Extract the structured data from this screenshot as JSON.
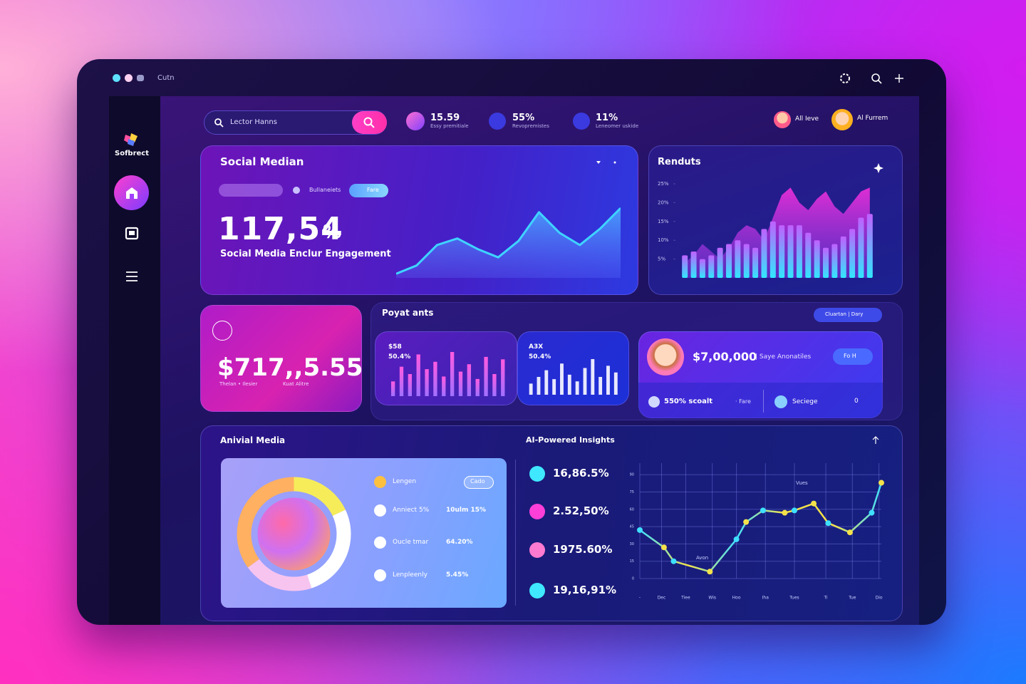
{
  "window": {
    "title": "Cutn"
  },
  "sidebar": {
    "brand": "Sofbrect"
  },
  "search": {
    "placeholder": "Lector Hanns"
  },
  "stats": [
    {
      "value": "15.59",
      "label": "Essy premitiale"
    },
    {
      "value": "55%",
      "label": "Revopremistes"
    },
    {
      "value": "11%",
      "label": "Leneomer uskide"
    }
  ],
  "users": [
    "All Ieve",
    "Al Furrem"
  ],
  "social": {
    "title": "Social Median",
    "chips": [
      "Bullaneiets",
      "Fare"
    ],
    "value": "117,54",
    "unit": "%",
    "caption": "Social Media Enclur Engagement",
    "chart_data": {
      "type": "area",
      "values": [
        5,
        15,
        40,
        48,
        35,
        25,
        45,
        80,
        55,
        40,
        60,
        85
      ],
      "color": "#3fd4ff"
    }
  },
  "results": {
    "title": "Renduts",
    "chart_data": {
      "type": "bar",
      "values": [
        6,
        7,
        5,
        6,
        8,
        9,
        10,
        9,
        8,
        13,
        15,
        14,
        14,
        14,
        12,
        10,
        8,
        9,
        11,
        13,
        16,
        17
      ],
      "wave": [
        4,
        6,
        9,
        7,
        5,
        8,
        12,
        14,
        13,
        10,
        16,
        22,
        24,
        20,
        18,
        21,
        23,
        19,
        17,
        20,
        23,
        24
      ],
      "ylim": [
        0,
        25
      ],
      "yticks": [
        {
          "value": 5,
          "label": "5%"
        },
        {
          "value": 10,
          "label": "10%"
        },
        {
          "value": 15,
          "label": "15%"
        },
        {
          "value": 20,
          "label": "20%"
        },
        {
          "value": 25,
          "label": "25%"
        }
      ]
    }
  },
  "balance": {
    "value": "$717,,5.55",
    "labels": [
      "Thelan • Ilesier",
      "Kuat Alitre"
    ]
  },
  "payments": {
    "title": "Poyat ants",
    "chip": "Cluartan | Dary",
    "panels": [
      {
        "label": "$58",
        "sub": "50.4%",
        "chart_data": {
          "type": "bar",
          "values": [
            30,
            60,
            45,
            85,
            55,
            70,
            40,
            90,
            50,
            65,
            35,
            80,
            45,
            75
          ]
        }
      },
      {
        "label": "A3X",
        "sub": "50.4%",
        "chart_data": {
          "type": "bar",
          "values": [
            25,
            40,
            55,
            35,
            70,
            45,
            30,
            60,
            80,
            40,
            65,
            50
          ]
        }
      }
    ]
  },
  "profile": {
    "amount": "$7,00,000",
    "name": "Saye Anonatiles",
    "button": "Fo H",
    "score": "550% scoalt",
    "tag": "Fare",
    "action": "Seciege",
    "count": "0"
  },
  "media": {
    "title": "Anivial Media",
    "chart_data": {
      "type": "pie",
      "values": [
        18,
        27,
        20,
        35
      ],
      "colors": [
        "#f6ec5a",
        "#ffffff",
        "#f7c4f0",
        "#ffb060"
      ]
    },
    "legend": {
      "header": "Lengen",
      "chip": "Cado",
      "items": [
        {
          "name": "Anniect 5%",
          "value": "10ulm 15%"
        },
        {
          "name": "Oucle tmar",
          "value": "64.20%"
        },
        {
          "name": "Lenpleenly",
          "value": "5.45%"
        }
      ]
    }
  },
  "insights": {
    "title": "AI-Powered Insights",
    "items": [
      "16,86.5%",
      "2.52,50%",
      "1975.60%",
      "19,16,91%"
    ],
    "chart_data": {
      "type": "line",
      "x": [
        0,
        10,
        14,
        29,
        40,
        44,
        51,
        60,
        64,
        72,
        78,
        87,
        96,
        100
      ],
      "values": [
        42,
        27,
        15,
        6,
        34,
        49,
        59,
        57,
        59,
        65,
        48,
        40,
        57,
        83
      ],
      "colors": [
        "#3fe0ff",
        "#f5e24a"
      ],
      "xlim": [
        0,
        100
      ],
      "ylim": [
        0,
        100
      ],
      "yticks": [
        0,
        15,
        30,
        45,
        60,
        75,
        90
      ],
      "xticks": [
        {
          "value": 0,
          "label": "-"
        },
        {
          "value": 9,
          "label": "Dec"
        },
        {
          "value": 19,
          "label": "Tiee"
        },
        {
          "value": 30,
          "label": "Wis"
        },
        {
          "value": 40,
          "label": "Hoo"
        },
        {
          "value": 52,
          "label": "Iha"
        },
        {
          "value": 64,
          "label": "Tues"
        },
        {
          "value": 77,
          "label": "Ti"
        },
        {
          "value": 88,
          "label": "Tue"
        },
        {
          "value": 99,
          "label": "Dio"
        }
      ],
      "annotations": [
        "Vues",
        "Avon"
      ]
    }
  }
}
